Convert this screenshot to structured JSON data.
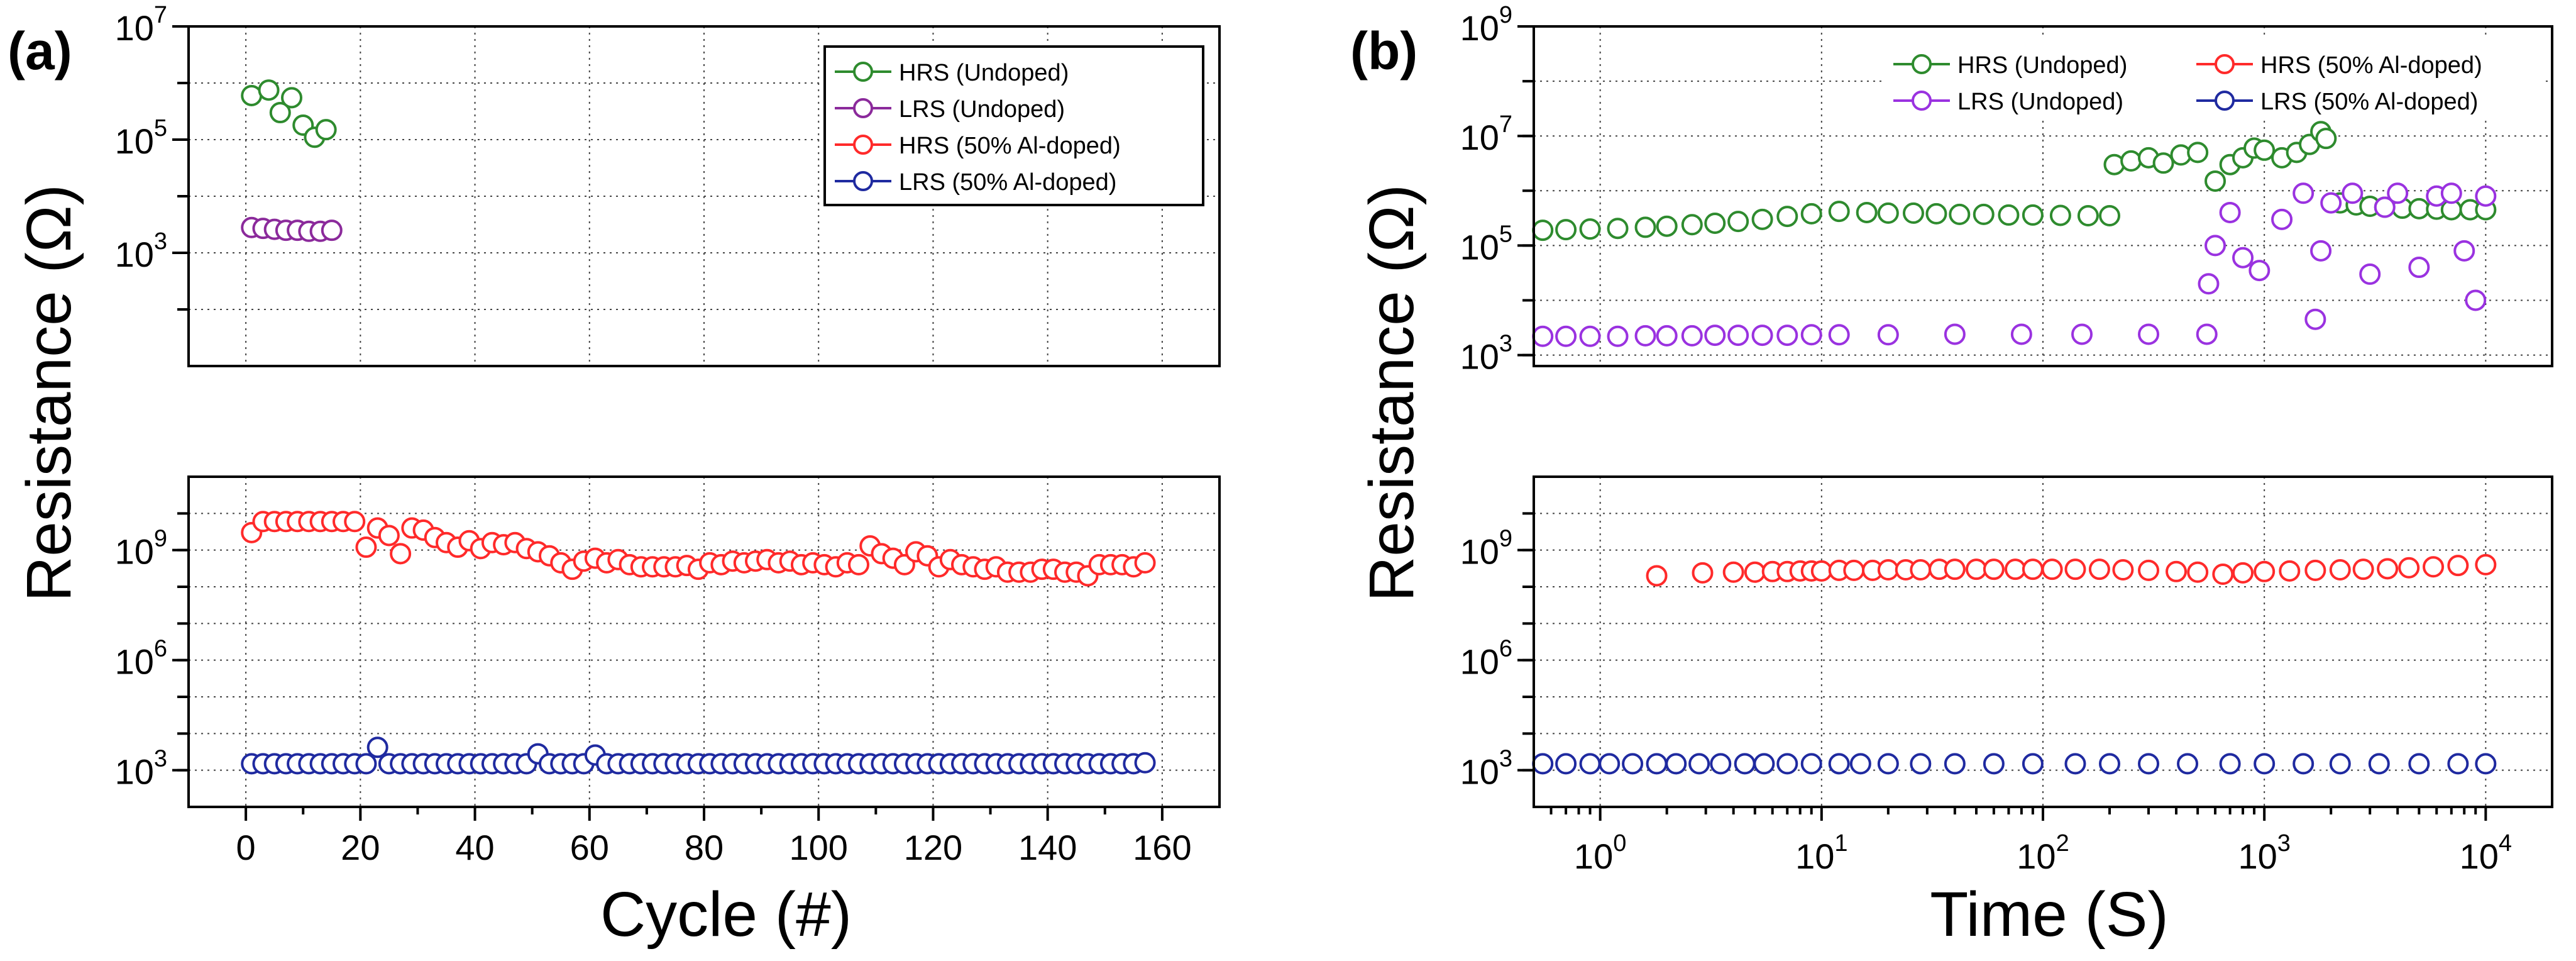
{
  "chart_data": [
    {
      "type": "scatter",
      "panel_label": "(a)",
      "xlabel": "Cycle (#)",
      "ylabel": "Resistance (Ω)",
      "x_range": [
        -10,
        170
      ],
      "x_ticks": [
        "0",
        "20",
        "40",
        "60",
        "80",
        "100",
        "120",
        "140",
        "160"
      ],
      "y_scale": "log",
      "y_break": true,
      "upper_y_range_log10": [
        1.0,
        7.0
      ],
      "lower_y_range_log10": [
        2.0,
        11.0
      ],
      "upper_y_ticks": [
        {
          "base": "10",
          "exp": "3"
        },
        {
          "base": "10",
          "exp": "5"
        },
        {
          "base": "10",
          "exp": "7"
        }
      ],
      "lower_y_ticks": [
        {
          "base": "10",
          "exp": "3"
        },
        {
          "base": "10",
          "exp": "6"
        },
        {
          "base": "10",
          "exp": "9"
        }
      ],
      "grid": "dotted",
      "legend": {
        "placement": "top-right",
        "entries": [
          {
            "label": "HRS (Undoped)",
            "color": "#2e8b2e"
          },
          {
            "label": "LRS (Undoped)",
            "color": "#8b2a9b"
          },
          {
            "label": "HRS (50% Al-doped)",
            "color": "#ff2a2a"
          },
          {
            "label": "LRS (50% Al-doped)",
            "color": "#1f2aa0"
          }
        ]
      },
      "series": [
        {
          "name": "HRS (Undoped)",
          "color": "#2e8b2e",
          "segment": "upper",
          "x": [
            1,
            4,
            6,
            8,
            10,
            12,
            14
          ],
          "y": [
            600000,
            750000,
            300000,
            550000,
            180000,
            110000,
            150000
          ]
        },
        {
          "name": "LRS (Undoped)",
          "color": "#8b2a9b",
          "segment": "upper",
          "x": [
            1,
            3,
            5,
            7,
            9,
            11,
            13,
            15
          ],
          "y": [
            2800,
            2700,
            2600,
            2500,
            2500,
            2400,
            2400,
            2500
          ]
        },
        {
          "name": "HRS (50% Al-doped)",
          "color": "#ff2a2a",
          "segment": "lower",
          "x": [
            1,
            3,
            5,
            7,
            9,
            11,
            13,
            15,
            17,
            19,
            21,
            23,
            25,
            27,
            29,
            31,
            33,
            35,
            37,
            39,
            41,
            43,
            45,
            47,
            49,
            51,
            53,
            55,
            57,
            59,
            61,
            63,
            65,
            67,
            69,
            71,
            73,
            75,
            77,
            79,
            81,
            83,
            85,
            87,
            89,
            91,
            93,
            95,
            97,
            99,
            101,
            103,
            105,
            107,
            109,
            111,
            113,
            115,
            117,
            119,
            121,
            123,
            125,
            127,
            129,
            131,
            133,
            135,
            137,
            139,
            141,
            143,
            145,
            147,
            149,
            151,
            153,
            155,
            157
          ],
          "y": [
            3000000000.0,
            6000000000.0,
            6000000000.0,
            6000000000.0,
            6000000000.0,
            6000000000.0,
            6000000000.0,
            6000000000.0,
            6000000000.0,
            6000000000.0,
            1200000000.0,
            4000000000.0,
            2500000000.0,
            800000000.0,
            4000000000.0,
            3500000000.0,
            2200000000.0,
            1600000000.0,
            1200000000.0,
            1800000000.0,
            1100000000.0,
            1600000000.0,
            1400000000.0,
            1600000000.0,
            1100000000.0,
            900000000.0,
            700000000.0,
            450000000.0,
            300000000.0,
            500000000.0,
            600000000.0,
            450000000.0,
            550000000.0,
            400000000.0,
            350000000.0,
            350000000.0,
            350000000.0,
            350000000.0,
            380000000.0,
            300000000.0,
            450000000.0,
            400000000.0,
            500000000.0,
            450000000.0,
            500000000.0,
            550000000.0,
            450000000.0,
            500000000.0,
            400000000.0,
            450000000.0,
            400000000.0,
            350000000.0,
            450000000.0,
            400000000.0,
            1300000000.0,
            800000000.0,
            600000000.0,
            400000000.0,
            900000000.0,
            700000000.0,
            350000000.0,
            550000000.0,
            400000000.0,
            350000000.0,
            300000000.0,
            350000000.0,
            250000000.0,
            250000000.0,
            250000000.0,
            300000000.0,
            300000000.0,
            250000000.0,
            250000000.0,
            200000000.0,
            400000000.0,
            400000000.0,
            400000000.0,
            350000000.0,
            450000000.0
          ]
        },
        {
          "name": "LRS (50% Al-doped)",
          "color": "#1f2aa0",
          "segment": "lower",
          "x": [
            1,
            3,
            5,
            7,
            9,
            11,
            13,
            15,
            17,
            19,
            21,
            23,
            25,
            27,
            29,
            31,
            33,
            35,
            37,
            39,
            41,
            43,
            45,
            47,
            49,
            51,
            53,
            55,
            57,
            59,
            61,
            63,
            65,
            67,
            69,
            71,
            73,
            75,
            77,
            79,
            81,
            83,
            85,
            87,
            89,
            91,
            93,
            95,
            97,
            99,
            101,
            103,
            105,
            107,
            109,
            111,
            113,
            115,
            117,
            119,
            121,
            123,
            125,
            127,
            129,
            131,
            133,
            135,
            137,
            139,
            141,
            143,
            145,
            147,
            149,
            151,
            153,
            155,
            157
          ],
          "y": [
            1500,
            1500,
            1500,
            1500,
            1500,
            1500,
            1500,
            1500,
            1500,
            1500,
            1500,
            4200,
            1500,
            1500,
            1500,
            1500,
            1500,
            1500,
            1500,
            1500,
            1500,
            1500,
            1500,
            1500,
            1500,
            2800,
            1500,
            1500,
            1500,
            1500,
            2600,
            1500,
            1500,
            1500,
            1500,
            1500,
            1500,
            1500,
            1500,
            1500,
            1500,
            1500,
            1500,
            1500,
            1500,
            1500,
            1500,
            1500,
            1500,
            1500,
            1500,
            1500,
            1500,
            1500,
            1500,
            1500,
            1500,
            1500,
            1500,
            1500,
            1500,
            1500,
            1500,
            1500,
            1500,
            1500,
            1500,
            1500,
            1500,
            1500,
            1500,
            1500,
            1500,
            1500,
            1500,
            1500,
            1500,
            1500,
            1600
          ]
        }
      ]
    },
    {
      "type": "scatter",
      "panel_label": "(b)",
      "xlabel": "Time (S)",
      "ylabel": "Resistance (Ω)",
      "x_scale": "log",
      "x_range_log10": [
        -0.3,
        4.3
      ],
      "x_ticks": [
        {
          "base": "10",
          "exp": "0"
        },
        {
          "base": "10",
          "exp": "1"
        },
        {
          "base": "10",
          "exp": "2"
        },
        {
          "base": "10",
          "exp": "3"
        },
        {
          "base": "10",
          "exp": "4"
        }
      ],
      "y_scale": "log",
      "y_break": true,
      "upper_y_range_log10": [
        2.8,
        9.0
      ],
      "lower_y_range_log10": [
        2.0,
        11.0
      ],
      "upper_y_ticks": [
        {
          "base": "10",
          "exp": "3"
        },
        {
          "base": "10",
          "exp": "5"
        },
        {
          "base": "10",
          "exp": "7"
        },
        {
          "base": "10",
          "exp": "9"
        }
      ],
      "lower_y_ticks": [
        {
          "base": "10",
          "exp": "3"
        },
        {
          "base": "10",
          "exp": "6"
        },
        {
          "base": "10",
          "exp": "9"
        }
      ],
      "grid": "dotted",
      "legend": {
        "placement": "top-right",
        "columns": 2,
        "entries": [
          {
            "label": "HRS (Undoped)",
            "color": "#2e8b2e"
          },
          {
            "label": "HRS (50% Al-doped)",
            "color": "#ff2a2a"
          },
          {
            "label": "LRS (Undoped)",
            "color": "#9a32e0"
          },
          {
            "label": "LRS (50% Al-doped)",
            "color": "#1f2aa0"
          }
        ]
      },
      "series": [
        {
          "name": "HRS (Undoped)",
          "color": "#2e8b2e",
          "segment": "upper",
          "x": [
            0.55,
            0.7,
            0.9,
            1.2,
            1.6,
            2,
            2.6,
            3.3,
            4.2,
            5.4,
            7,
            9,
            12,
            16,
            20,
            26,
            33,
            42,
            54,
            70,
            90,
            120,
            160,
            200,
            210,
            250,
            300,
            350,
            420,
            500,
            600,
            700,
            800,
            900,
            1000,
            1200,
            1400,
            1600,
            1800,
            1900,
            2200,
            2600,
            3000,
            3500,
            4200,
            5000,
            6000,
            7000,
            8500,
            10000
          ],
          "y": [
            190000,
            195000,
            200000,
            205000,
            215000,
            225000,
            240000,
            255000,
            275000,
            300000,
            340000,
            380000,
            420000,
            400000,
            390000,
            390000,
            380000,
            370000,
            370000,
            360000,
            360000,
            355000,
            350000,
            350000,
            3000000,
            3500000,
            4000000,
            3200000,
            4500000,
            5000000,
            1500000,
            3000000,
            4000000,
            6000000,
            5500000,
            4000000,
            5000000,
            7000000,
            12000000,
            9000000,
            600000,
            550000,
            520000,
            500000,
            480000,
            470000,
            460000,
            450000,
            450000,
            450000
          ]
        },
        {
          "name": "LRS (Undoped)",
          "color": "#9a32e0",
          "segment": "upper",
          "x": [
            0.55,
            0.7,
            0.9,
            1.2,
            1.6,
            2,
            2.6,
            3.3,
            4.2,
            5.4,
            7,
            9,
            12,
            20,
            40,
            80,
            150,
            300,
            550,
            560,
            600,
            700,
            800,
            950,
            1200,
            1500,
            1700,
            1800,
            2000,
            2500,
            3000,
            3500,
            4000,
            5000,
            6000,
            7000,
            8000,
            9000,
            10000
          ],
          "y": [
            2200,
            2200,
            2200,
            2200,
            2250,
            2250,
            2250,
            2300,
            2300,
            2300,
            2300,
            2350,
            2350,
            2350,
            2400,
            2400,
            2400,
            2400,
            2400,
            20000,
            100000,
            400000,
            60000,
            35000,
            300000,
            900000,
            4500,
            80000,
            600000,
            900000,
            30000,
            500000,
            900000,
            40000,
            800000,
            900000,
            80000,
            10000,
            800000
          ]
        },
        {
          "name": "HRS (50% Al-doped)",
          "color": "#ff2a2a",
          "segment": "lower",
          "x": [
            1.8,
            2.9,
            4,
            5,
            6,
            7,
            8,
            9,
            10,
            12,
            14,
            17,
            20,
            24,
            28,
            34,
            40,
            50,
            60,
            75,
            90,
            110,
            140,
            180,
            230,
            300,
            400,
            500,
            650,
            800,
            1000,
            1300,
            1700,
            2200,
            2800,
            3600,
            4500,
            5800,
            7500,
            10000
          ],
          "y": [
            200000000.0,
            240000000.0,
            250000000.0,
            250000000.0,
            260000000.0,
            260000000.0,
            270000000.0,
            270000000.0,
            270000000.0,
            280000000.0,
            280000000.0,
            280000000.0,
            290000000.0,
            290000000.0,
            290000000.0,
            300000000.0,
            300000000.0,
            300000000.0,
            300000000.0,
            300000000.0,
            300000000.0,
            300000000.0,
            300000000.0,
            300000000.0,
            290000000.0,
            280000000.0,
            260000000.0,
            250000000.0,
            220000000.0,
            240000000.0,
            260000000.0,
            270000000.0,
            280000000.0,
            290000000.0,
            300000000.0,
            310000000.0,
            330000000.0,
            350000000.0,
            380000000.0,
            400000000.0
          ]
        },
        {
          "name": "LRS (50% Al-doped)",
          "color": "#1f2aa0",
          "segment": "lower",
          "x": [
            0.55,
            0.7,
            0.9,
            1.1,
            1.4,
            1.8,
            2.2,
            2.8,
            3.5,
            4.5,
            5.5,
            7,
            9,
            12,
            15,
            20,
            28,
            40,
            60,
            90,
            140,
            200,
            300,
            450,
            700,
            1000,
            1500,
            2200,
            3300,
            5000,
            7500,
            10000
          ],
          "y": [
            1500,
            1500,
            1500,
            1500,
            1500,
            1500,
            1500,
            1500,
            1500,
            1500,
            1500,
            1500,
            1500,
            1500,
            1500,
            1500,
            1500,
            1500,
            1500,
            1500,
            1500,
            1500,
            1500,
            1500,
            1500,
            1500,
            1500,
            1500,
            1500,
            1500,
            1500,
            1500
          ]
        }
      ]
    }
  ]
}
